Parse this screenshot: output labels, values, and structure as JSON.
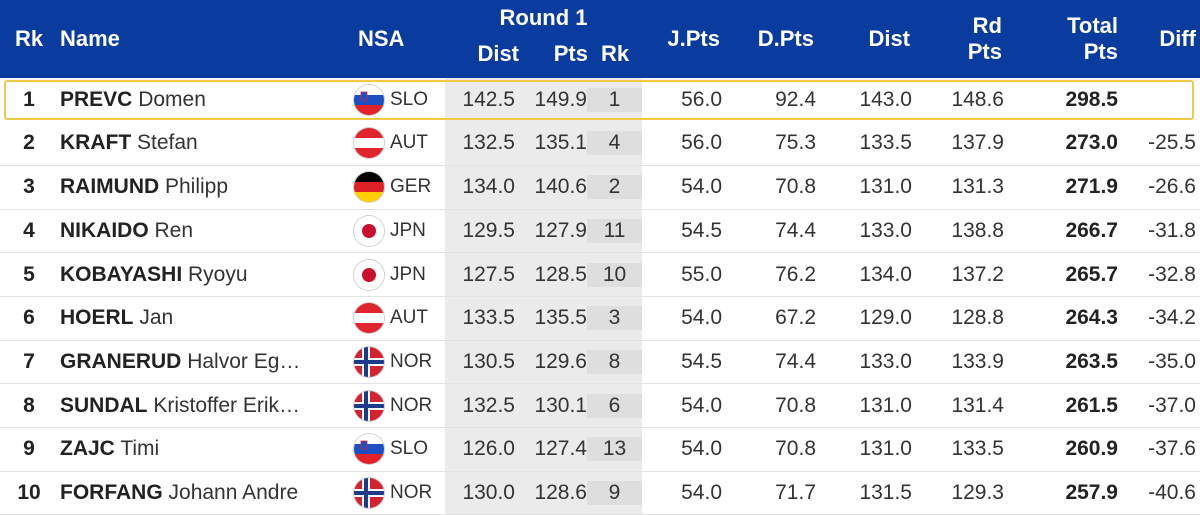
{
  "header": {
    "rk": "Rk",
    "name": "Name",
    "nsa": "NSA",
    "round": "Round 1",
    "round_dist": "Dist",
    "round_pts": "Pts",
    "round_rk": "Rk",
    "jpts": "J.Pts",
    "dpts": "D.Pts",
    "dist": "Dist",
    "rdpts_line1": "Rd",
    "rdpts_line2": "Pts",
    "total_line1": "Total",
    "total_line2": "Pts",
    "diff": "Diff"
  },
  "colors": {
    "header_bg": "#0a3b9e",
    "highlight_border": "#f0c84a",
    "shade": "#ebebeb"
  },
  "rows": [
    {
      "rk": "1",
      "last": "PREVC",
      "first": "Domen",
      "flag": "slovenia-flag-icon",
      "nsa": "SLO",
      "r1_dist": "142.5",
      "r1_pts": "149.9",
      "r1_rk": "1",
      "jpts": "56.0",
      "dpts": "92.4",
      "dist": "143.0",
      "rdpts": "148.6",
      "total": "298.5",
      "diff": ""
    },
    {
      "rk": "2",
      "last": "KRAFT",
      "first": "Stefan",
      "flag": "austria-flag-icon",
      "nsa": "AUT",
      "r1_dist": "132.5",
      "r1_pts": "135.1",
      "r1_rk": "4",
      "jpts": "56.0",
      "dpts": "75.3",
      "dist": "133.5",
      "rdpts": "137.9",
      "total": "273.0",
      "diff": "-25.5"
    },
    {
      "rk": "3",
      "last": "RAIMUND",
      "first": "Philipp",
      "flag": "germany-flag-icon",
      "nsa": "GER",
      "r1_dist": "134.0",
      "r1_pts": "140.6",
      "r1_rk": "2",
      "jpts": "54.0",
      "dpts": "70.8",
      "dist": "131.0",
      "rdpts": "131.3",
      "total": "271.9",
      "diff": "-26.6"
    },
    {
      "rk": "4",
      "last": "NIKAIDO",
      "first": "Ren",
      "flag": "japan-flag-icon",
      "nsa": "JPN",
      "r1_dist": "129.5",
      "r1_pts": "127.9",
      "r1_rk": "11",
      "jpts": "54.5",
      "dpts": "74.4",
      "dist": "133.0",
      "rdpts": "138.8",
      "total": "266.7",
      "diff": "-31.8"
    },
    {
      "rk": "5",
      "last": "KOBAYASHI",
      "first": "Ryoyu",
      "flag": "japan-flag-icon",
      "nsa": "JPN",
      "r1_dist": "127.5",
      "r1_pts": "128.5",
      "r1_rk": "10",
      "jpts": "55.0",
      "dpts": "76.2",
      "dist": "134.0",
      "rdpts": "137.2",
      "total": "265.7",
      "diff": "-32.8"
    },
    {
      "rk": "6",
      "last": "HOERL",
      "first": "Jan",
      "flag": "austria-flag-icon",
      "nsa": "AUT",
      "r1_dist": "133.5",
      "r1_pts": "135.5",
      "r1_rk": "3",
      "jpts": "54.0",
      "dpts": "67.2",
      "dist": "129.0",
      "rdpts": "128.8",
      "total": "264.3",
      "diff": "-34.2"
    },
    {
      "rk": "7",
      "last": "GRANERUD",
      "first": "Halvor Eg…",
      "flag": "norway-flag-icon",
      "nsa": "NOR",
      "r1_dist": "130.5",
      "r1_pts": "129.6",
      "r1_rk": "8",
      "jpts": "54.5",
      "dpts": "74.4",
      "dist": "133.0",
      "rdpts": "133.9",
      "total": "263.5",
      "diff": "-35.0"
    },
    {
      "rk": "8",
      "last": "SUNDAL",
      "first": "Kristoffer Erik…",
      "flag": "norway-flag-icon",
      "nsa": "NOR",
      "r1_dist": "132.5",
      "r1_pts": "130.1",
      "r1_rk": "6",
      "jpts": "54.0",
      "dpts": "70.8",
      "dist": "131.0",
      "rdpts": "131.4",
      "total": "261.5",
      "diff": "-37.0"
    },
    {
      "rk": "9",
      "last": "ZAJC",
      "first": "Timi",
      "flag": "slovenia-flag-icon",
      "nsa": "SLO",
      "r1_dist": "126.0",
      "r1_pts": "127.4",
      "r1_rk": "13",
      "jpts": "54.0",
      "dpts": "70.8",
      "dist": "131.0",
      "rdpts": "133.5",
      "total": "260.9",
      "diff": "-37.6"
    },
    {
      "rk": "10",
      "last": "FORFANG",
      "first": "Johann Andre",
      "flag": "norway-flag-icon",
      "nsa": "NOR",
      "r1_dist": "130.0",
      "r1_pts": "128.6",
      "r1_rk": "9",
      "jpts": "54.0",
      "dpts": "71.7",
      "dist": "131.5",
      "rdpts": "129.3",
      "total": "257.9",
      "diff": "-40.6"
    }
  ]
}
